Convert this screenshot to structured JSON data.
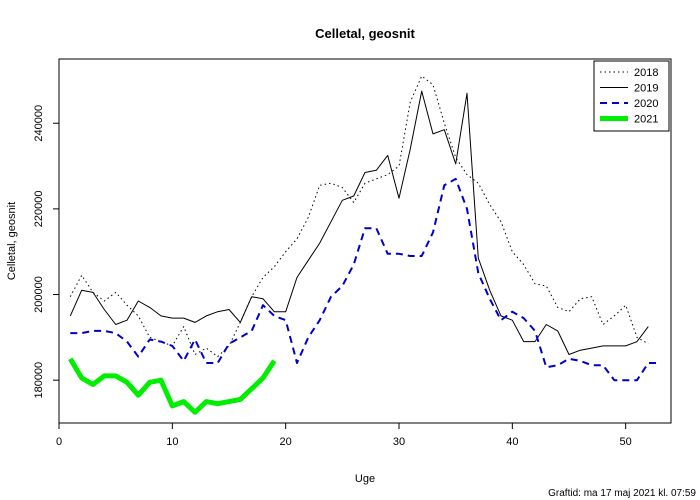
{
  "chart_data": {
    "type": "line",
    "title": "Celletal, geosnit",
    "xlabel": "Uge",
    "ylabel": "Celletal, geosnit",
    "footer": "Graftid: ma 17 maj 2021 kl. 07:59",
    "xlim": [
      0,
      54
    ],
    "ylim": [
      170000,
      255000
    ],
    "x_ticks": [
      0,
      10,
      20,
      30,
      40,
      50
    ],
    "y_ticks": [
      180000,
      200000,
      220000,
      240000
    ],
    "legend_position": "top-right",
    "grid": false,
    "series": [
      {
        "name": "2018",
        "color": "#000000",
        "style": "dotted",
        "width": 1,
        "x": [
          1,
          2,
          3,
          4,
          5,
          6,
          7,
          8,
          9,
          10,
          11,
          12,
          13,
          14,
          15,
          16,
          17,
          18,
          19,
          20,
          21,
          22,
          23,
          24,
          25,
          26,
          27,
          28,
          29,
          30,
          31,
          32,
          33,
          34,
          35,
          36,
          37,
          38,
          39,
          40,
          41,
          42,
          43,
          44,
          45,
          46,
          47,
          48,
          49,
          50,
          51,
          52
        ],
        "y": [
          199500,
          204500,
          200500,
          198500,
          200500,
          197500,
          195000,
          190000,
          189000,
          188000,
          192500,
          186000,
          187500,
          185500,
          188000,
          193500,
          199500,
          204000,
          206500,
          210000,
          213000,
          218000,
          225500,
          226000,
          225000,
          221500,
          226000,
          227000,
          228000,
          230000,
          245000,
          251000,
          249000,
          240000,
          232000,
          228000,
          226000,
          221000,
          217000,
          210000,
          207000,
          202500,
          202000,
          197000,
          196000,
          199000,
          199500,
          193000,
          195000,
          197500,
          190000,
          188500
        ]
      },
      {
        "name": "2019",
        "color": "#000000",
        "style": "solid",
        "width": 1,
        "x": [
          1,
          2,
          3,
          4,
          5,
          6,
          7,
          8,
          9,
          10,
          11,
          12,
          13,
          14,
          15,
          16,
          17,
          18,
          19,
          20,
          21,
          22,
          23,
          24,
          25,
          26,
          27,
          28,
          29,
          30,
          31,
          32,
          33,
          34,
          35,
          36,
          37,
          38,
          39,
          40,
          41,
          42,
          43,
          44,
          45,
          46,
          47,
          48,
          49,
          50,
          51,
          52
        ],
        "y": [
          195000,
          201000,
          200500,
          196500,
          193000,
          194000,
          198500,
          197000,
          195000,
          194500,
          194500,
          193500,
          195000,
          196000,
          196500,
          193500,
          199500,
          199000,
          196000,
          196000,
          204000,
          208000,
          212000,
          217000,
          222000,
          223000,
          228500,
          229000,
          232500,
          222500,
          234000,
          247500,
          237500,
          238500,
          230500,
          247000,
          208500,
          201000,
          195000,
          194000,
          189000,
          189000,
          193000,
          191500,
          186000,
          187000,
          187500,
          188000,
          188000,
          188000,
          189000,
          192500
        ]
      },
      {
        "name": "2020",
        "color": "#0000cc",
        "style": "dashed",
        "width": 2,
        "x": [
          1,
          2,
          3,
          4,
          5,
          6,
          7,
          8,
          9,
          10,
          11,
          12,
          13,
          14,
          15,
          16,
          17,
          18,
          19,
          20,
          21,
          22,
          23,
          24,
          25,
          26,
          27,
          28,
          29,
          30,
          31,
          32,
          33,
          34,
          35,
          36,
          37,
          38,
          39,
          40,
          41,
          42,
          43,
          44,
          45,
          46,
          47,
          48,
          49,
          50,
          51,
          52,
          53
        ],
        "y": [
          191000,
          191000,
          191500,
          191500,
          191000,
          189000,
          185500,
          189500,
          189000,
          188000,
          184500,
          189500,
          184000,
          184000,
          188500,
          190000,
          191500,
          197500,
          195000,
          194000,
          184000,
          190000,
          194000,
          199500,
          202000,
          207000,
          215500,
          215500,
          209500,
          209500,
          209000,
          209000,
          214500,
          225500,
          227000,
          220000,
          205000,
          199000,
          194000,
          196000,
          194500,
          191500,
          183000,
          183500,
          185000,
          184500,
          183500,
          183500,
          180000,
          180000,
          180000,
          184000,
          184000
        ]
      },
      {
        "name": "2021",
        "color": "#00ee00",
        "style": "solid",
        "width": 5,
        "x": [
          1,
          2,
          3,
          4,
          5,
          6,
          7,
          8,
          9,
          10,
          11,
          12,
          13,
          14,
          15,
          16,
          17,
          18,
          19
        ],
        "y": [
          185000,
          180500,
          179000,
          181000,
          181000,
          179500,
          176500,
          179500,
          180000,
          174000,
          175000,
          172500,
          175000,
          174500,
          175000,
          175500,
          178000,
          180500,
          184500
        ]
      }
    ]
  }
}
